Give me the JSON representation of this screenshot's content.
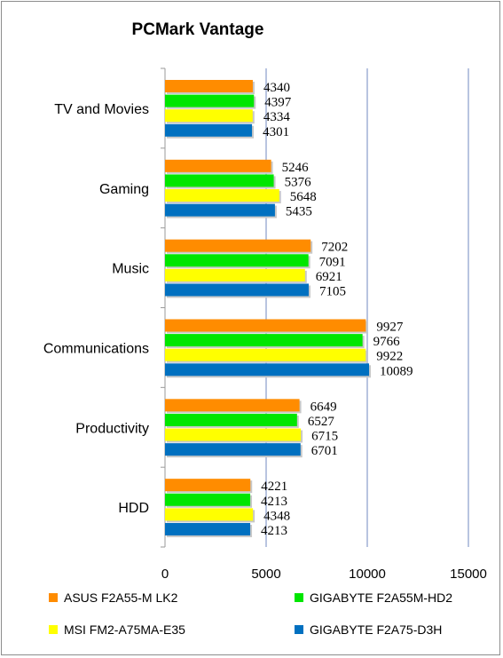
{
  "chart_data": {
    "type": "bar",
    "orientation": "horizontal",
    "title": "PCMark Vantage",
    "xlabel": "",
    "ylabel": "",
    "xlim": [
      0,
      15000
    ],
    "x_ticks": [
      0,
      5000,
      10000,
      15000
    ],
    "x_tick_labels": [
      "0",
      "5000",
      "10000",
      "15000"
    ],
    "grid": "vertical",
    "legend_position": "bottom",
    "categories": [
      "TV and Movies",
      "Gaming",
      "Music",
      "Communications",
      "Productivity",
      "HDD"
    ],
    "series": [
      {
        "name": "ASUS F2A55-M LK2",
        "color": "#ff8c00",
        "values": [
          4340,
          5246,
          7202,
          9927,
          6649,
          4221
        ]
      },
      {
        "name": "GIGABYTE F2A55M-HD2",
        "color": "#00e600",
        "values": [
          4397,
          5376,
          7091,
          9766,
          6527,
          4213
        ]
      },
      {
        "name": "MSI FM2-A75MA-E35",
        "color": "#ffff00",
        "values": [
          4334,
          5648,
          6921,
          9922,
          6715,
          4348
        ]
      },
      {
        "name": "GIGABYTE F2A75-D3H",
        "color": "#0070c0",
        "values": [
          4301,
          5435,
          7105,
          10089,
          6701,
          4213
        ]
      }
    ]
  }
}
